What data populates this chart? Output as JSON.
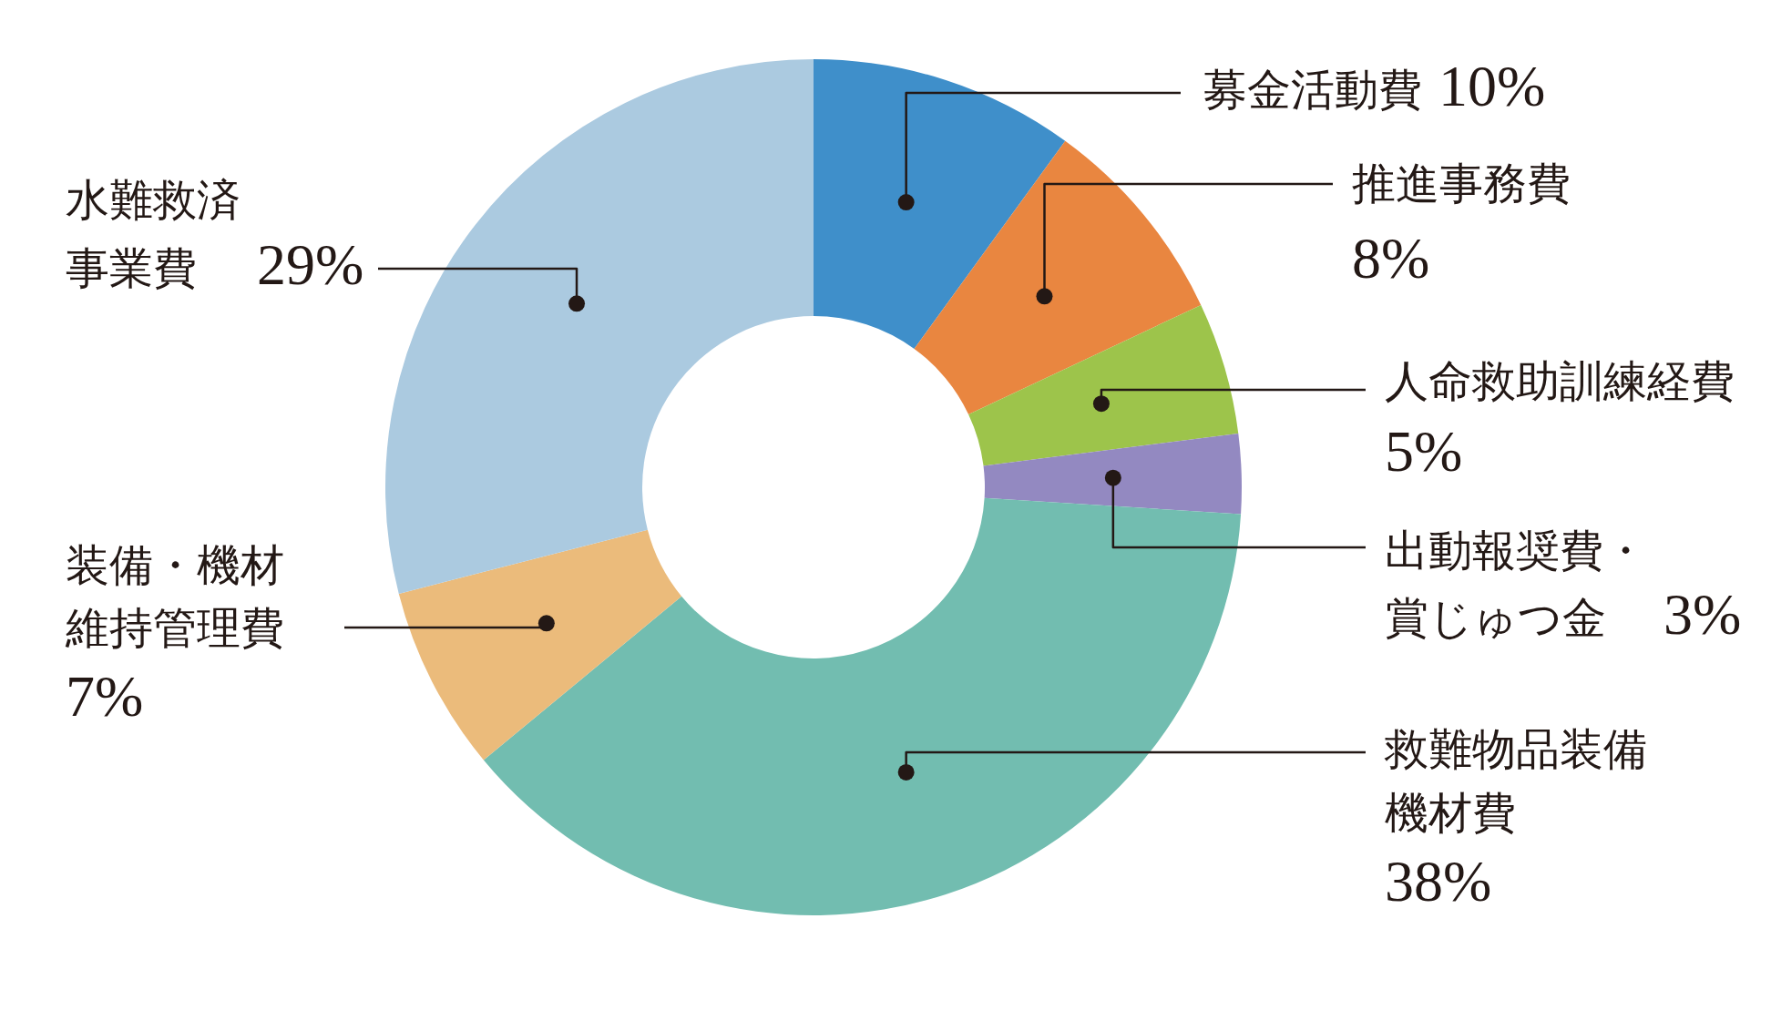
{
  "chart_data": {
    "type": "donut",
    "categories": [
      "募金活動費",
      "推進事務費",
      "人命救助訓練経費",
      "出動報奨費・賞じゅつ金",
      "救難物品装備機材費",
      "装備・機材維持管理費",
      "水難救済事業費"
    ],
    "values": [
      10,
      8,
      5,
      3,
      38,
      7,
      29
    ],
    "colors": [
      "#3f8fca",
      "#e98640",
      "#9dc44b",
      "#9389c1",
      "#72bdb0",
      "#ebbb7b",
      "#abcae0"
    ],
    "value_labels": [
      "10%",
      "8%",
      "5%",
      "3%",
      "38%",
      "7%",
      "29%"
    ]
  }
}
